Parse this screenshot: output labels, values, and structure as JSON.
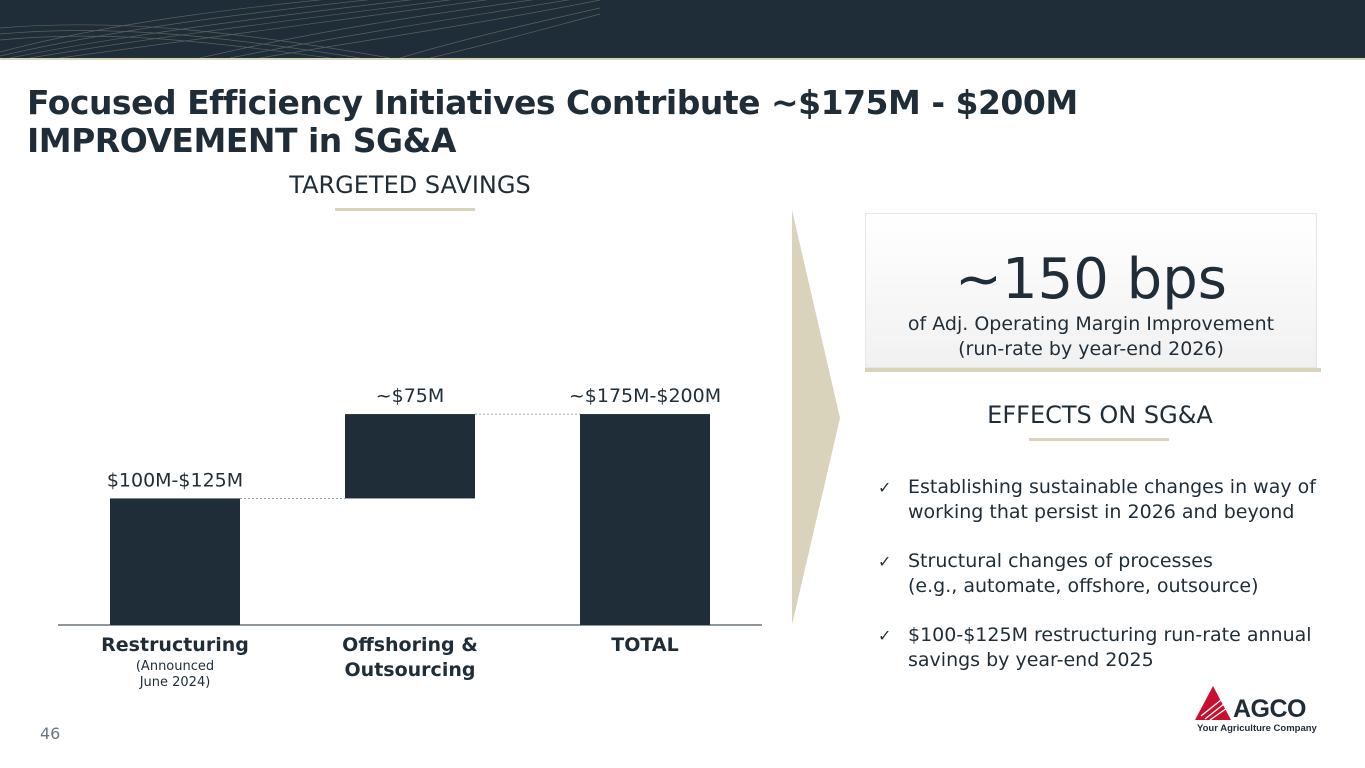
{
  "title": "Focused Efficiency Initiatives Contribute ~$175M - $200M IMPROVEMENT in SG&A",
  "chart_section": {
    "title": "TARGETED SAVINGS"
  },
  "chart_data": {
    "type": "bar",
    "subtype": "waterfall",
    "title": "TARGETED SAVINGS",
    "units": "$M",
    "categories": [
      "Restructuring",
      "Offshoring & Outsourcing",
      "TOTAL"
    ],
    "category_sublabels": [
      "(Announced June 2024)",
      "",
      ""
    ],
    "values": [
      112.5,
      75,
      187.5
    ],
    "bar_types": [
      "increase",
      "increase",
      "total"
    ],
    "data_labels": [
      "$100M-$125M",
      "~$75M",
      "~$175M-$200M"
    ],
    "ylim": [
      0,
      280
    ],
    "xlabel": "",
    "ylabel": "",
    "grid": false,
    "legend": "none",
    "colors": {
      "bar": "#1f2d38",
      "connector": "#9aa3aa",
      "axis": "#1f2d38"
    }
  },
  "kpi": {
    "value": "~150 bps",
    "desc_line1": "of Adj. Operating Margin Improvement",
    "desc_line2": "(run-rate by year-end 2026)"
  },
  "effects": {
    "title": "EFFECTS ON SG&A",
    "check_glyph": "✓",
    "items": [
      {
        "line1": "Establishing sustainable changes in way of",
        "line2": "working that persist in 2026 and beyond"
      },
      {
        "line1": "Structural changes of processes",
        "line2": "(e.g., automate, offshore, outsource)"
      },
      {
        "line1": "$100-$125M restructuring run-rate annual",
        "line2": "savings by year-end 2025"
      }
    ]
  },
  "page_number": "46",
  "logo": {
    "name": "AGCO",
    "tagline": "Your Agriculture Company"
  },
  "colors": {
    "navy": "#1f2d38",
    "beige": "#d9d3bc",
    "red": "#c8102e"
  }
}
